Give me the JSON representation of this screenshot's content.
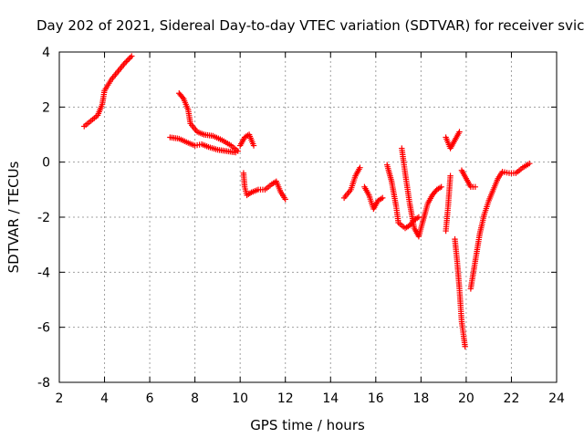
{
  "chart_data": {
    "type": "scatter",
    "title": "Day 202 of 2021, Sidereal Day-to-day VTEC variation (SDTVAR) for receiver svic",
    "xlabel": "GPS time / hours",
    "ylabel": "SDTVAR / TECUs",
    "xlim": [
      2,
      24
    ],
    "ylim": [
      -8,
      4
    ],
    "xticks": [
      "2",
      "4",
      "6",
      "8",
      "10",
      "12",
      "14",
      "16",
      "18",
      "20",
      "22",
      "24"
    ],
    "yticks": [
      "4",
      "2",
      "0",
      "-2",
      "-4",
      "-6",
      "-8"
    ],
    "grid": true,
    "marker": "+",
    "color": "#ff0000",
    "series": [
      {
        "name": "SDTVAR",
        "segments": [
          [
            [
              3.1,
              1.3
            ],
            [
              3.4,
              1.5
            ],
            [
              3.7,
              1.7
            ],
            [
              3.9,
              2.1
            ],
            [
              4.0,
              2.6
            ],
            [
              4.3,
              3.0
            ],
            [
              4.6,
              3.3
            ],
            [
              4.9,
              3.6
            ],
            [
              5.2,
              3.85
            ]
          ],
          [
            [
              7.3,
              2.5
            ],
            [
              7.5,
              2.3
            ],
            [
              7.7,
              1.9
            ],
            [
              7.8,
              1.4
            ],
            [
              8.1,
              1.1
            ],
            [
              8.4,
              1.0
            ],
            [
              8.8,
              0.95
            ],
            [
              9.2,
              0.8
            ],
            [
              9.6,
              0.6
            ],
            [
              9.9,
              0.4
            ]
          ],
          [
            [
              6.9,
              0.9
            ],
            [
              7.3,
              0.85
            ],
            [
              7.7,
              0.7
            ],
            [
              8.0,
              0.6
            ],
            [
              8.3,
              0.65
            ],
            [
              8.6,
              0.55
            ],
            [
              9.0,
              0.45
            ],
            [
              9.4,
              0.4
            ],
            [
              9.8,
              0.35
            ]
          ],
          [
            [
              10.0,
              0.6
            ],
            [
              10.2,
              0.9
            ],
            [
              10.4,
              1.0
            ],
            [
              10.6,
              0.6
            ]
          ],
          [
            [
              10.15,
              -0.4
            ],
            [
              10.2,
              -0.9
            ],
            [
              10.3,
              -1.2
            ],
            [
              10.5,
              -1.1
            ],
            [
              10.8,
              -1.0
            ],
            [
              11.1,
              -1.0
            ],
            [
              11.4,
              -0.8
            ],
            [
              11.6,
              -0.7
            ],
            [
              11.8,
              -1.1
            ],
            [
              12.0,
              -1.35
            ]
          ],
          [
            [
              14.6,
              -1.3
            ],
            [
              14.9,
              -1.0
            ],
            [
              15.1,
              -0.5
            ],
            [
              15.3,
              -0.2
            ]
          ],
          [
            [
              15.5,
              -0.9
            ],
            [
              15.7,
              -1.2
            ],
            [
              15.9,
              -1.7
            ],
            [
              16.1,
              -1.4
            ],
            [
              16.3,
              -1.3
            ]
          ],
          [
            [
              16.5,
              -0.1
            ],
            [
              16.7,
              -0.7
            ],
            [
              16.9,
              -1.6
            ],
            [
              17.0,
              -2.2
            ],
            [
              17.3,
              -2.4
            ],
            [
              17.5,
              -2.3
            ],
            [
              17.7,
              -2.1
            ],
            [
              17.9,
              -2.0
            ]
          ],
          [
            [
              17.15,
              0.5
            ],
            [
              17.3,
              -0.4
            ],
            [
              17.5,
              -1.5
            ],
            [
              17.7,
              -2.4
            ],
            [
              17.9,
              -2.7
            ],
            [
              18.1,
              -2.1
            ],
            [
              18.3,
              -1.5
            ],
            [
              18.5,
              -1.2
            ],
            [
              18.7,
              -1.0
            ],
            [
              18.9,
              -0.9
            ]
          ],
          [
            [
              19.1,
              -2.5
            ],
            [
              19.2,
              -1.6
            ],
            [
              19.3,
              -0.5
            ]
          ],
          [
            [
              19.1,
              0.9
            ],
            [
              19.3,
              0.5
            ],
            [
              19.5,
              0.8
            ],
            [
              19.7,
              1.1
            ]
          ],
          [
            [
              19.5,
              -2.8
            ],
            [
              19.6,
              -3.6
            ],
            [
              19.7,
              -4.6
            ],
            [
              19.8,
              -5.8
            ],
            [
              19.95,
              -6.7
            ]
          ],
          [
            [
              19.8,
              -0.3
            ],
            [
              20.0,
              -0.6
            ],
            [
              20.2,
              -0.9
            ],
            [
              20.4,
              -0.9
            ]
          ],
          [
            [
              20.2,
              -4.6
            ],
            [
              20.4,
              -3.6
            ],
            [
              20.6,
              -2.6
            ],
            [
              20.8,
              -1.9
            ],
            [
              21.0,
              -1.4
            ],
            [
              21.2,
              -1.0
            ],
            [
              21.4,
              -0.6
            ],
            [
              21.6,
              -0.35
            ],
            [
              21.9,
              -0.4
            ],
            [
              22.2,
              -0.4
            ],
            [
              22.5,
              -0.2
            ],
            [
              22.8,
              -0.05
            ]
          ]
        ]
      }
    ]
  }
}
